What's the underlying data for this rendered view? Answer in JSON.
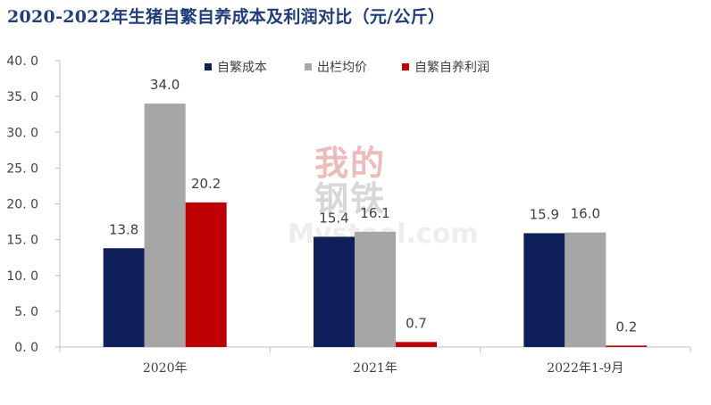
{
  "title": "2020-2022年生猪自繁自养成本及利润对比（元/公斤）",
  "watermark": {
    "line1a": "我",
    "line1b": "的",
    "line2a": "钢",
    "line2b": "铁",
    "text_en": "Mysteel.com"
  },
  "colors": {
    "cost": "#0e1f5c",
    "price": "#a6a6a6",
    "profit": "#c00000",
    "axis": "#bfbfbf",
    "title": "#1f3d7a"
  },
  "chart_data": {
    "type": "bar",
    "title": "2020-2022年生猪自繁自养成本及利润对比（元/公斤）",
    "categories": [
      "2020年",
      "2021年",
      "2022年1-9月"
    ],
    "series": [
      {
        "name": "自繁成本",
        "values": [
          13.8,
          15.4,
          15.9
        ],
        "labels": [
          "13.8",
          "15.4",
          "15.9"
        ]
      },
      {
        "name": "出栏均价",
        "values": [
          34.0,
          16.1,
          16.0
        ],
        "labels": [
          "34.0",
          "16.1",
          "16.0"
        ]
      },
      {
        "name": "自繁自养利润",
        "values": [
          20.2,
          0.7,
          0.2
        ],
        "labels": [
          "20.2",
          "0.7",
          "0.2"
        ]
      }
    ],
    "ylim": [
      0,
      40
    ],
    "yticks": [
      0,
      5,
      10,
      15,
      20,
      25,
      30,
      35,
      40
    ],
    "ytick_labels": [
      "0. 0",
      "5. 0",
      "10. 0",
      "15. 0",
      "20. 0",
      "25. 0",
      "30. 0",
      "35. 0",
      "40. 0"
    ],
    "grid": false,
    "legend_position": "top-center",
    "xlabel": "",
    "ylabel": ""
  }
}
